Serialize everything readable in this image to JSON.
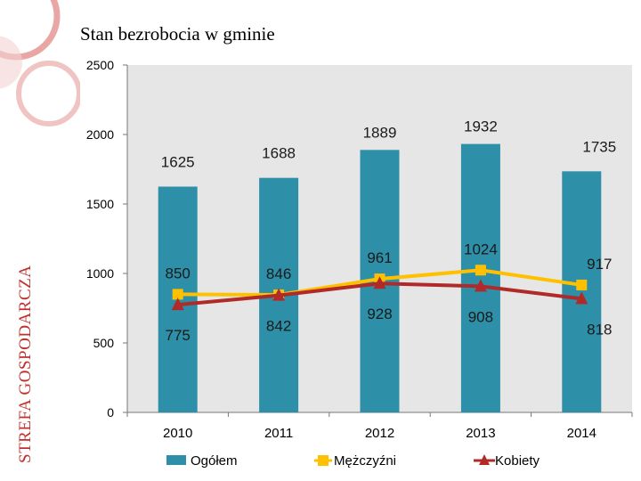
{
  "slide": {
    "title": "Stan bezrobocia w gminie",
    "side_title": "STREFA GOSPODARCZA"
  },
  "colors": {
    "accent": "#c0302c",
    "ogolem": "#2e8fa8",
    "mezczyzni": "#ffc000",
    "kobiety": "#b02a2a",
    "plot_bg": "#e6e6e6"
  },
  "chart_data": {
    "type": "bar",
    "categories": [
      "2010",
      "2011",
      "2012",
      "2013",
      "2014"
    ],
    "series": [
      {
        "name": "Ogółem",
        "type": "bar",
        "values": [
          1625,
          1688,
          1889,
          1932,
          1735
        ]
      },
      {
        "name": "Mężczyźni",
        "type": "line",
        "marker": "square",
        "values": [
          850,
          846,
          961,
          1024,
          917
        ]
      },
      {
        "name": "Kobiety",
        "type": "line",
        "marker": "triangle",
        "values": [
          775,
          842,
          928,
          908,
          818
        ]
      }
    ],
    "ylim": [
      0,
      2500
    ],
    "yticks": [
      "0",
      "500",
      "1000",
      "1500",
      "2000",
      "2500"
    ],
    "title": "",
    "xlabel": "",
    "ylabel": "",
    "legend": "bottom",
    "grid": false
  }
}
